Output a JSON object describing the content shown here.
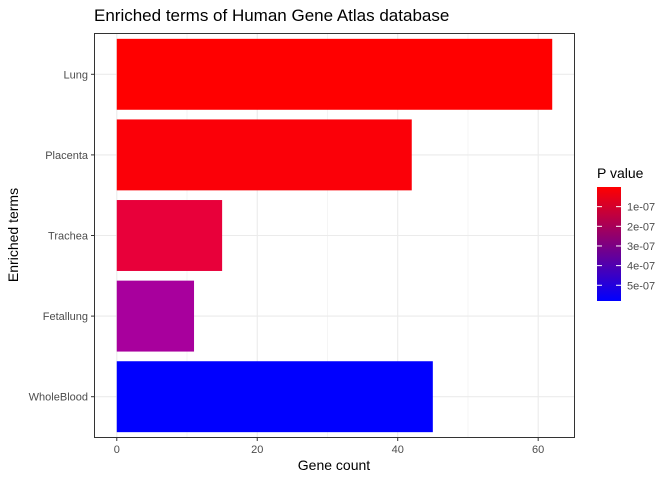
{
  "chart_data": {
    "type": "bar",
    "orientation": "horizontal",
    "title": "Enriched terms of Human Gene Atlas database",
    "xlabel": "Gene count",
    "ylabel": "Enriched terms",
    "categories": [
      "Lung",
      "Placenta",
      "Trachea",
      "Fetallung",
      "WholeBlood"
    ],
    "values": [
      62,
      42,
      15,
      11,
      45
    ],
    "p_values": [
      1e-08,
      1e-08,
      1.2e-07,
      3.7e-07,
      5.8e-07
    ],
    "bar_colors": [
      "#FF0000",
      "#FB0008",
      "#E8003A",
      "#A8009D",
      "#0000FF"
    ],
    "xlim": [
      -3.1,
      65.1
    ],
    "xticks": [
      0,
      20,
      40,
      60
    ],
    "xtick_labels": [
      "0",
      "20",
      "40",
      "60"
    ],
    "grid": true,
    "panel_border": true,
    "legend": {
      "title": "P value",
      "placement": "right",
      "type": "colorbar",
      "low_color": "#FF0000",
      "high_color": "#0000FF",
      "range": [
        0,
        5.8e-07
      ],
      "ticks": [
        1e-07,
        2e-07,
        3e-07,
        4e-07,
        5e-07
      ],
      "tick_labels": [
        "1e-07",
        "2e-07",
        "3e-07",
        "4e-07",
        "5e-07"
      ]
    },
    "colors": {
      "panel_background": "#FFFFFF",
      "grid_major": "#EBEBEB",
      "grid_minor": "#F5F5F5",
      "border": "#333333",
      "tick_text": "#4D4D4D"
    }
  }
}
